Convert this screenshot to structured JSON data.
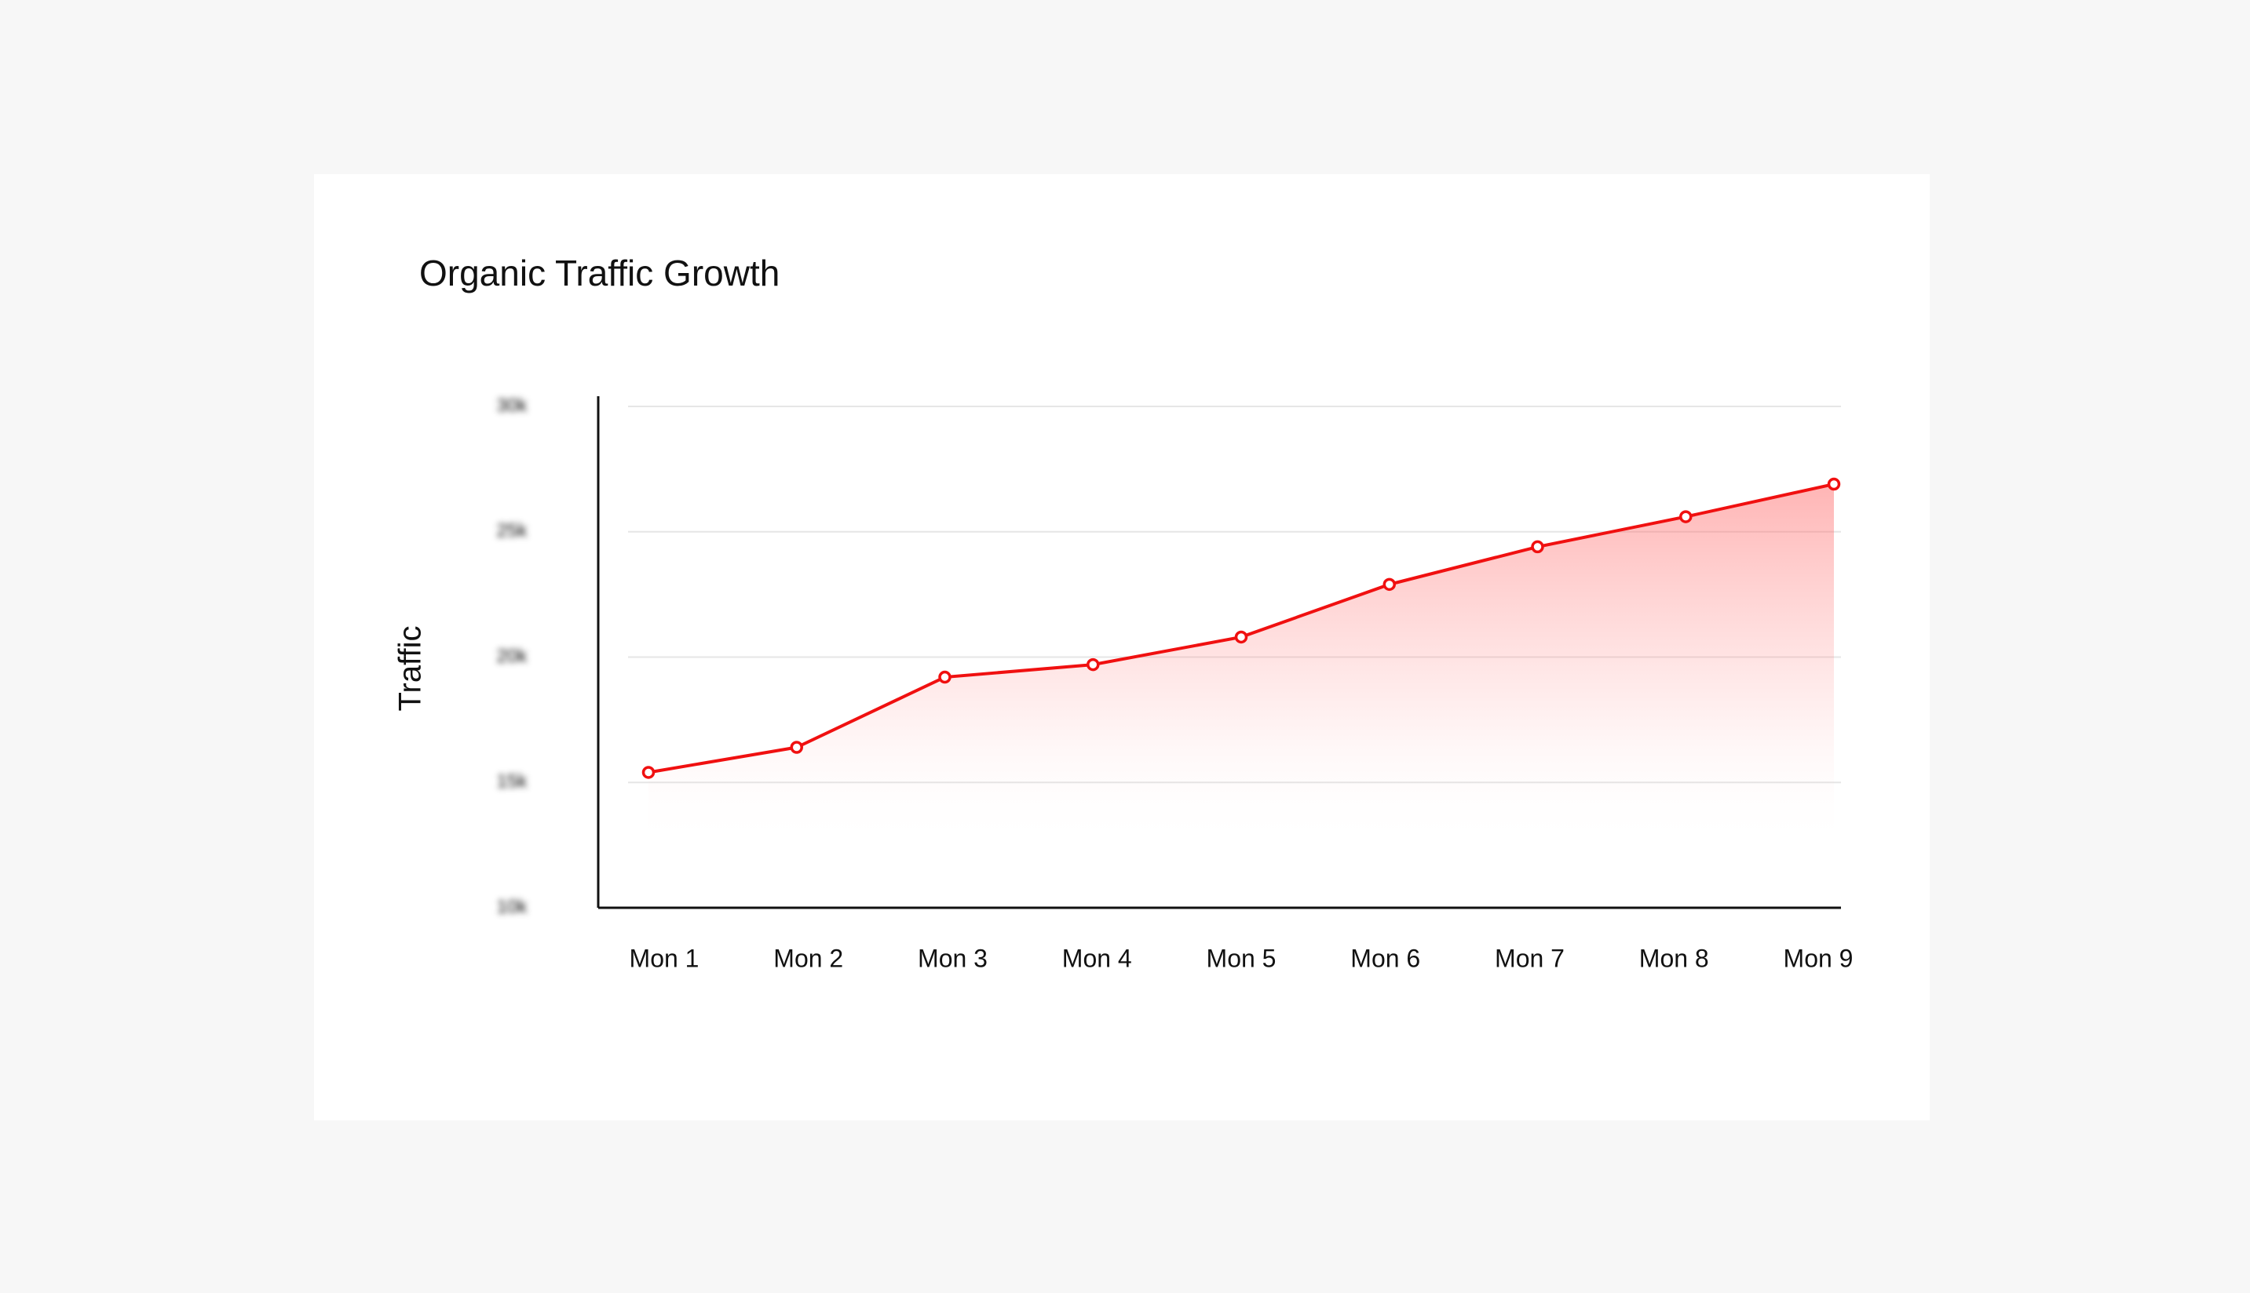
{
  "chart_data": {
    "type": "line",
    "title": "Organic Traffic Growth",
    "y_label": "Traffic",
    "categories": [
      "Mon 1",
      "Mon 2",
      "Mon 3",
      "Mon 4",
      "Mon 5",
      "Mon 6",
      "Mon 7",
      "Mon 8",
      "Mon 9"
    ],
    "values": [
      15400,
      16400,
      19200,
      19700,
      20800,
      22900,
      24400,
      25600,
      26900
    ],
    "color": "#f01010",
    "ylim": [
      10000,
      30000
    ],
    "yticks": [
      {
        "value": 10000,
        "label": "10k"
      },
      {
        "value": 15000,
        "label": "15k"
      },
      {
        "value": 20000,
        "label": "20k"
      },
      {
        "value": 25000,
        "label": "25k"
      },
      {
        "value": 30000,
        "label": "30k"
      }
    ],
    "grid": true
  }
}
